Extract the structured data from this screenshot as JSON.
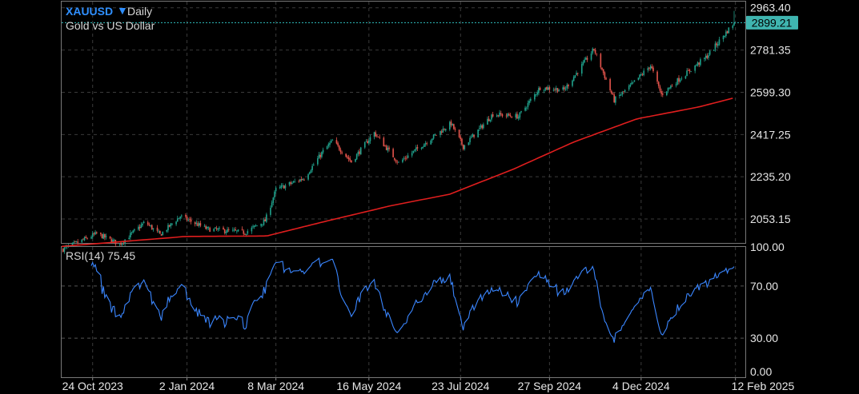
{
  "header": {
    "symbol": "XAUUSD",
    "timeframe": "Daily",
    "subtitle": "Gold vs US Dollar"
  },
  "rsi_label": "RSI(14) 75.45",
  "last_price_label": "2899.21",
  "colors": {
    "up_candle": "#1f9e89",
    "down_candle": "#e0524a",
    "ma_line": "#e01e1e",
    "rsi_line": "#3a86ff",
    "last_price_line": "#2fbfbf",
    "last_price_tag": "#3fb5b0",
    "grid": "#3a3a3a",
    "frame": "#777777"
  },
  "chart_data": [
    {
      "type": "candlestick",
      "title": "XAUUSD Daily",
      "subtitle": "Gold vs US Dollar",
      "x_tick_labels": [
        "24 Oct 2023",
        "2 Jan 2024",
        "8 Mar 2024",
        "16 May 2024",
        "23 Jul 2024",
        "27 Sep 2024",
        "4 Dec 2024",
        "12 Feb 2025"
      ],
      "y_tick_labels": [
        "2963.40",
        "2781.35",
        "2599.30",
        "2417.25",
        "2235.20",
        "2053.15"
      ],
      "ylim": [
        1950,
        2990
      ],
      "last_price": 2899.21,
      "grid": true,
      "close_anchors": [
        {
          "date": "2023-10-01",
          "close": 1920
        },
        {
          "date": "2023-10-27",
          "close": 1990
        },
        {
          "date": "2023-11-13",
          "close": 1945
        },
        {
          "date": "2023-12-01",
          "close": 2035
        },
        {
          "date": "2023-12-04",
          "close": 2030
        },
        {
          "date": "2023-12-13",
          "close": 1985
        },
        {
          "date": "2023-12-28",
          "close": 2065
        },
        {
          "date": "2024-01-17",
          "close": 2010
        },
        {
          "date": "2024-02-14",
          "close": 1995
        },
        {
          "date": "2024-02-29",
          "close": 2045
        },
        {
          "date": "2024-03-08",
          "close": 2180
        },
        {
          "date": "2024-03-29",
          "close": 2230
        },
        {
          "date": "2024-04-12",
          "close": 2345
        },
        {
          "date": "2024-04-19",
          "close": 2390
        },
        {
          "date": "2024-05-03",
          "close": 2300
        },
        {
          "date": "2024-05-20",
          "close": 2425
        },
        {
          "date": "2024-06-07",
          "close": 2295
        },
        {
          "date": "2024-07-16",
          "close": 2465
        },
        {
          "date": "2024-07-25",
          "close": 2365
        },
        {
          "date": "2024-08-16",
          "close": 2505
        },
        {
          "date": "2024-09-04",
          "close": 2495
        },
        {
          "date": "2024-09-20",
          "close": 2620
        },
        {
          "date": "2024-10-08",
          "close": 2610
        },
        {
          "date": "2024-10-30",
          "close": 2785
        },
        {
          "date": "2024-11-14",
          "close": 2565
        },
        {
          "date": "2024-11-25",
          "close": 2620
        },
        {
          "date": "2024-12-11",
          "close": 2715
        },
        {
          "date": "2024-12-19",
          "close": 2590
        },
        {
          "date": "2025-01-02",
          "close": 2660
        },
        {
          "date": "2025-01-22",
          "close": 2755
        },
        {
          "date": "2025-02-11",
          "close": 2900
        }
      ],
      "ma_anchors": [
        {
          "date": "2023-10-01",
          "close": 1935
        },
        {
          "date": "2024-01-01",
          "close": 1978
        },
        {
          "date": "2024-03-01",
          "close": 1980
        },
        {
          "date": "2024-04-15",
          "close": 2045
        },
        {
          "date": "2024-06-01",
          "close": 2110
        },
        {
          "date": "2024-07-15",
          "close": 2160
        },
        {
          "date": "2024-09-01",
          "close": 2270
        },
        {
          "date": "2024-10-15",
          "close": 2385
        },
        {
          "date": "2024-12-01",
          "close": 2485
        },
        {
          "date": "2025-01-15",
          "close": 2535
        },
        {
          "date": "2025-02-11",
          "close": 2575
        }
      ]
    },
    {
      "type": "line",
      "title": "RSI(14) 75.45",
      "y_tick_labels": [
        "100.00",
        "70.00",
        "30.00",
        "0.00"
      ],
      "ylim": [
        0,
        100
      ],
      "last_value": 75.45,
      "grid": true
    }
  ]
}
